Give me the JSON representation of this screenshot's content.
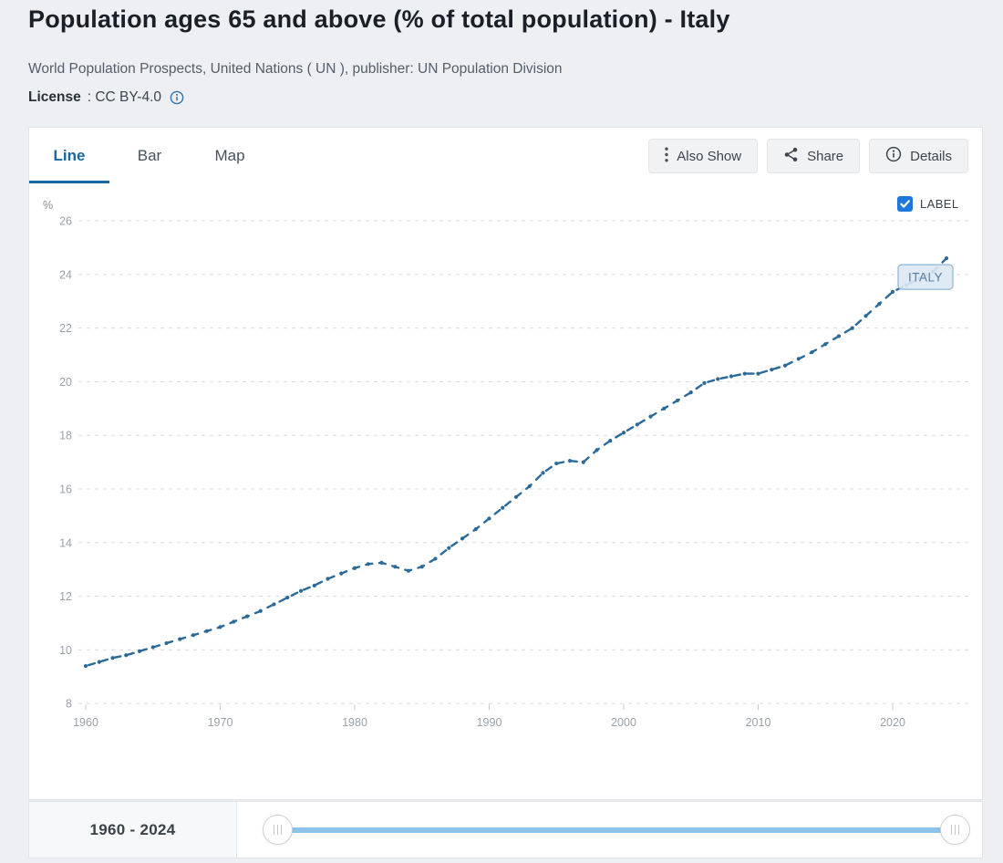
{
  "header": {
    "title": "Population ages 65 and above (% of total population) - Italy",
    "source": "World Population Prospects, United Nations ( UN ), publisher: UN Population Division",
    "license_label": "License",
    "license_value": ": CC BY-4.0"
  },
  "tabs": [
    {
      "label": "Line",
      "active": true
    },
    {
      "label": "Bar",
      "active": false
    },
    {
      "label": "Map",
      "active": false
    }
  ],
  "toolbar": {
    "also_show": "Also Show",
    "share": "Share",
    "details": "Details"
  },
  "legend": {
    "label": "LABEL",
    "checked": true
  },
  "slider": {
    "range_label": "1960 - 2024",
    "start": 1960,
    "end": 2024
  },
  "chart_data": {
    "type": "line",
    "title": "Population ages 65 and above (% of total population) - Italy",
    "ylabel": "%",
    "xlabel": "",
    "ylim": [
      8,
      26
    ],
    "ytick_step": 2,
    "xticks": [
      1960,
      1970,
      1980,
      1990,
      2000,
      2010,
      2020
    ],
    "grid": "horizontal-dashed",
    "line_style": "dotted-dashed",
    "legend_position": "top-right",
    "x": [
      1960,
      1961,
      1962,
      1963,
      1964,
      1965,
      1966,
      1967,
      1968,
      1969,
      1970,
      1971,
      1972,
      1973,
      1974,
      1975,
      1976,
      1977,
      1978,
      1979,
      1980,
      1981,
      1982,
      1983,
      1984,
      1985,
      1986,
      1987,
      1988,
      1989,
      1990,
      1991,
      1992,
      1993,
      1994,
      1995,
      1996,
      1997,
      1998,
      1999,
      2000,
      2001,
      2002,
      2003,
      2004,
      2005,
      2006,
      2007,
      2008,
      2009,
      2010,
      2011,
      2012,
      2013,
      2014,
      2015,
      2016,
      2017,
      2018,
      2019,
      2020,
      2021,
      2022,
      2023,
      2024
    ],
    "series": [
      {
        "name": "ITALY",
        "values": [
          9.4,
          9.55,
          9.7,
          9.8,
          9.95,
          10.1,
          10.25,
          10.4,
          10.55,
          10.7,
          10.85,
          11.05,
          11.25,
          11.45,
          11.7,
          11.95,
          12.2,
          12.4,
          12.65,
          12.85,
          13.05,
          13.2,
          13.25,
          13.1,
          12.95,
          13.1,
          13.4,
          13.8,
          14.15,
          14.5,
          14.9,
          15.3,
          15.7,
          16.1,
          16.6,
          16.95,
          17.05,
          17.0,
          17.45,
          17.8,
          18.1,
          18.4,
          18.7,
          19.0,
          19.3,
          19.6,
          19.95,
          20.1,
          20.2,
          20.3,
          20.3,
          20.45,
          20.6,
          20.85,
          21.1,
          21.4,
          21.7,
          22.0,
          22.45,
          22.9,
          23.35,
          23.6,
          23.85,
          24.1,
          24.6
        ]
      }
    ],
    "colors": {
      "line": "#2a6a9a",
      "label_box_bg": "#dbe8f4",
      "label_box_border": "#8fb4d3",
      "grid": "#d8dadd"
    }
  }
}
